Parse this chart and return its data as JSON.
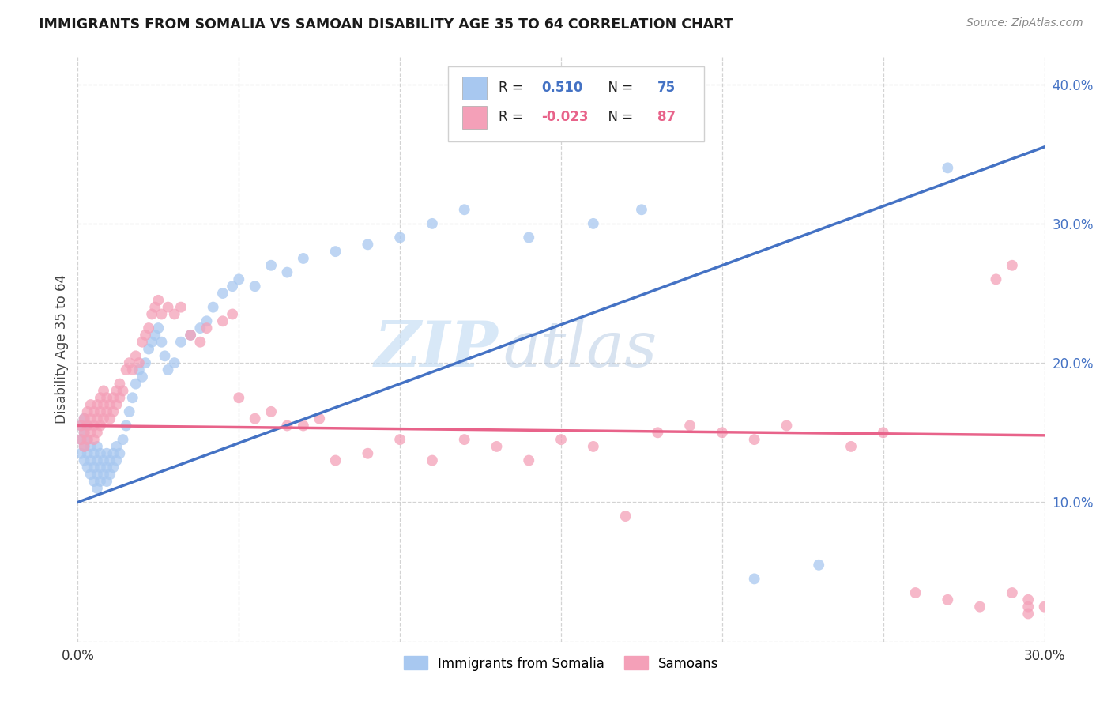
{
  "title": "IMMIGRANTS FROM SOMALIA VS SAMOAN DISABILITY AGE 35 TO 64 CORRELATION CHART",
  "source": "Source: ZipAtlas.com",
  "ylabel_label": "Disability Age 35 to 64",
  "xlim": [
    0.0,
    0.3
  ],
  "ylim": [
    0.0,
    0.42
  ],
  "xticks": [
    0.0,
    0.05,
    0.1,
    0.15,
    0.2,
    0.25,
    0.3
  ],
  "yticks": [
    0.0,
    0.1,
    0.2,
    0.3,
    0.4
  ],
  "color_somalia": "#a8c8f0",
  "color_samoan": "#f4a0b8",
  "line_color_somalia": "#4472c4",
  "line_color_samoan": "#e8638a",
  "R_somalia": 0.51,
  "N_somalia": 75,
  "R_samoan": -0.023,
  "N_samoan": 87,
  "watermark_zip": "ZIP",
  "watermark_atlas": "atlas",
  "background_color": "#ffffff",
  "grid_color": "#c8c8c8",
  "somalia_x": [
    0.001,
    0.001,
    0.001,
    0.002,
    0.002,
    0.002,
    0.002,
    0.003,
    0.003,
    0.003,
    0.003,
    0.004,
    0.004,
    0.004,
    0.005,
    0.005,
    0.005,
    0.006,
    0.006,
    0.006,
    0.006,
    0.007,
    0.007,
    0.007,
    0.008,
    0.008,
    0.009,
    0.009,
    0.009,
    0.01,
    0.01,
    0.011,
    0.011,
    0.012,
    0.012,
    0.013,
    0.014,
    0.015,
    0.016,
    0.017,
    0.018,
    0.019,
    0.02,
    0.021,
    0.022,
    0.023,
    0.024,
    0.025,
    0.026,
    0.027,
    0.028,
    0.03,
    0.032,
    0.035,
    0.038,
    0.04,
    0.042,
    0.045,
    0.048,
    0.05,
    0.055,
    0.06,
    0.065,
    0.07,
    0.08,
    0.09,
    0.1,
    0.11,
    0.12,
    0.14,
    0.16,
    0.175,
    0.21,
    0.23,
    0.27
  ],
  "somalia_y": [
    0.135,
    0.145,
    0.155,
    0.13,
    0.14,
    0.15,
    0.16,
    0.125,
    0.135,
    0.145,
    0.155,
    0.12,
    0.13,
    0.14,
    0.115,
    0.125,
    0.135,
    0.11,
    0.12,
    0.13,
    0.14,
    0.115,
    0.125,
    0.135,
    0.12,
    0.13,
    0.115,
    0.125,
    0.135,
    0.12,
    0.13,
    0.125,
    0.135,
    0.13,
    0.14,
    0.135,
    0.145,
    0.155,
    0.165,
    0.175,
    0.185,
    0.195,
    0.19,
    0.2,
    0.21,
    0.215,
    0.22,
    0.225,
    0.215,
    0.205,
    0.195,
    0.2,
    0.215,
    0.22,
    0.225,
    0.23,
    0.24,
    0.25,
    0.255,
    0.26,
    0.255,
    0.27,
    0.265,
    0.275,
    0.28,
    0.285,
    0.29,
    0.3,
    0.31,
    0.29,
    0.3,
    0.31,
    0.045,
    0.055,
    0.34
  ],
  "samoan_x": [
    0.001,
    0.001,
    0.002,
    0.002,
    0.002,
    0.003,
    0.003,
    0.003,
    0.004,
    0.004,
    0.004,
    0.005,
    0.005,
    0.005,
    0.006,
    0.006,
    0.006,
    0.007,
    0.007,
    0.007,
    0.008,
    0.008,
    0.008,
    0.009,
    0.009,
    0.01,
    0.01,
    0.011,
    0.011,
    0.012,
    0.012,
    0.013,
    0.013,
    0.014,
    0.015,
    0.016,
    0.017,
    0.018,
    0.019,
    0.02,
    0.021,
    0.022,
    0.023,
    0.024,
    0.025,
    0.026,
    0.028,
    0.03,
    0.032,
    0.035,
    0.038,
    0.04,
    0.045,
    0.048,
    0.05,
    0.055,
    0.06,
    0.065,
    0.07,
    0.075,
    0.08,
    0.09,
    0.1,
    0.11,
    0.12,
    0.13,
    0.14,
    0.15,
    0.16,
    0.17,
    0.18,
    0.19,
    0.2,
    0.21,
    0.22,
    0.24,
    0.25,
    0.26,
    0.27,
    0.28,
    0.285,
    0.29,
    0.29,
    0.295,
    0.295,
    0.295,
    0.3
  ],
  "samoan_y": [
    0.145,
    0.155,
    0.14,
    0.15,
    0.16,
    0.145,
    0.155,
    0.165,
    0.15,
    0.16,
    0.17,
    0.145,
    0.155,
    0.165,
    0.15,
    0.16,
    0.17,
    0.155,
    0.165,
    0.175,
    0.16,
    0.17,
    0.18,
    0.165,
    0.175,
    0.16,
    0.17,
    0.165,
    0.175,
    0.17,
    0.18,
    0.175,
    0.185,
    0.18,
    0.195,
    0.2,
    0.195,
    0.205,
    0.2,
    0.215,
    0.22,
    0.225,
    0.235,
    0.24,
    0.245,
    0.235,
    0.24,
    0.235,
    0.24,
    0.22,
    0.215,
    0.225,
    0.23,
    0.235,
    0.175,
    0.16,
    0.165,
    0.155,
    0.155,
    0.16,
    0.13,
    0.135,
    0.145,
    0.13,
    0.145,
    0.14,
    0.13,
    0.145,
    0.14,
    0.09,
    0.15,
    0.155,
    0.15,
    0.145,
    0.155,
    0.14,
    0.15,
    0.035,
    0.03,
    0.025,
    0.26,
    0.27,
    0.035,
    0.03,
    0.025,
    0.02,
    0.025
  ]
}
